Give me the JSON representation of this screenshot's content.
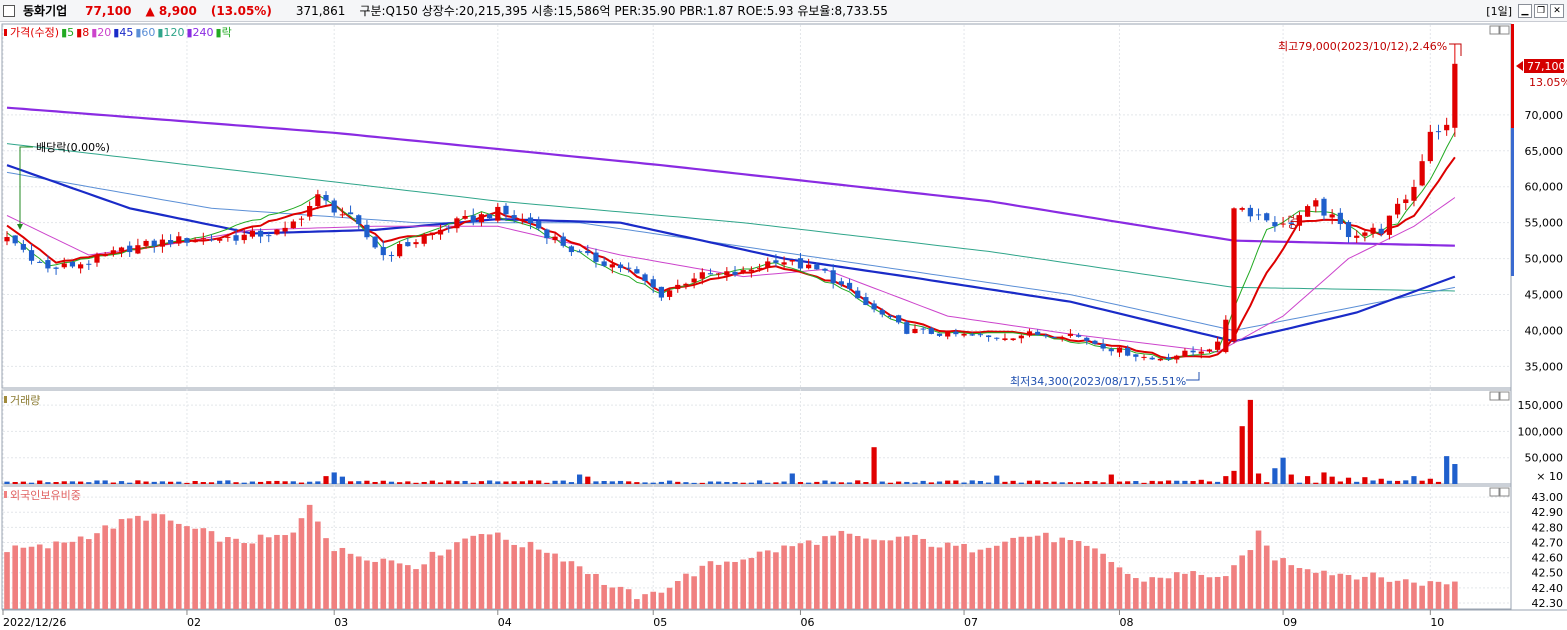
{
  "header": {
    "stock_name": "동화기업",
    "price": "77,100",
    "change": "▲ 8,900",
    "change_pct": "(13.05%)",
    "volume": "371,861",
    "info": "구분:Q150 상장수:20,215,395 시총:15,586억 PER:35.90 PBR:1.87 ROE:5.93 유보율:8,733.55",
    "period": "[1일]"
  },
  "colors": {
    "up": "#e00000",
    "down": "#1f5fcc",
    "ma5": "#22aa22",
    "ma8": "#dd0000",
    "ma20": "#cc44cc",
    "ma45": "#1a2bc8",
    "ma60": "#5b8fd6",
    "ma120": "#2fa58a",
    "ma240": "#8a2be2",
    "foreign": "#f08080"
  },
  "chart_data": [
    {
      "type": "candlestick",
      "title": "가격(수정)",
      "legend": [
        {
          "label": "가격(수정)",
          "color": "#e00000"
        },
        {
          "label": "5",
          "color": "#22aa22"
        },
        {
          "label": "8",
          "color": "#dd0000"
        },
        {
          "label": "20",
          "color": "#cc44cc"
        },
        {
          "label": "45",
          "color": "#1a2bc8"
        },
        {
          "label": "60",
          "color": "#5b8fd6"
        },
        {
          "label": "120",
          "color": "#2fa58a"
        },
        {
          "label": "240",
          "color": "#8a2be2"
        },
        {
          "label": "락",
          "color": "#22aa22"
        }
      ],
      "x_labels": [
        "2022/12/26",
        "02",
        "03",
        "04",
        "05",
        "06",
        "07",
        "08",
        "09",
        "10"
      ],
      "y_ticks": [
        "35,000",
        "40,000",
        "45,000",
        "50,000",
        "55,000",
        "60,000",
        "65,000",
        "70,000"
      ],
      "ylim": [
        32000,
        82500
      ],
      "close_keys": [
        [
          0,
          53000
        ],
        [
          5,
          48500
        ],
        [
          10,
          49500
        ],
        [
          15,
          51500
        ],
        [
          20,
          52500
        ],
        [
          28,
          53000
        ],
        [
          34,
          53800
        ],
        [
          38,
          58500
        ],
        [
          42,
          55500
        ],
        [
          46,
          50500
        ],
        [
          50,
          52500
        ],
        [
          55,
          55000
        ],
        [
          60,
          56500
        ],
        [
          64,
          55000
        ],
        [
          70,
          50500
        ],
        [
          76,
          48500
        ],
        [
          80,
          45000
        ],
        [
          84,
          47500
        ],
        [
          90,
          48000
        ],
        [
          94,
          50000
        ],
        [
          100,
          48000
        ],
        [
          105,
          43500
        ],
        [
          110,
          40000
        ],
        [
          115,
          39500
        ],
        [
          120,
          39000
        ],
        [
          125,
          39500
        ],
        [
          130,
          39500
        ],
        [
          135,
          37500
        ],
        [
          140,
          36000
        ],
        [
          145,
          37000
        ],
        [
          148,
          38000
        ],
        [
          150,
          57500
        ],
        [
          156,
          54500
        ],
        [
          160,
          57500
        ],
        [
          164,
          53500
        ],
        [
          168,
          54000
        ],
        [
          172,
          60000
        ],
        [
          174,
          68000
        ],
        [
          176,
          68200
        ],
        [
          177,
          77100
        ]
      ],
      "moving_averages": [
        {
          "name": "240",
          "color": "#8a2be2",
          "keys": [
            [
              0,
              71000
            ],
            [
              40,
              67500
            ],
            [
              80,
              63000
            ],
            [
              120,
              58000
            ],
            [
              150,
              52500
            ],
            [
              177,
              51800
            ]
          ]
        },
        {
          "name": "120",
          "color": "#2fa58a",
          "keys": [
            [
              0,
              66000
            ],
            [
              30,
              62000
            ],
            [
              60,
              58000
            ],
            [
              90,
              55000
            ],
            [
              120,
              51000
            ],
            [
              150,
              46000
            ],
            [
              177,
              45500
            ]
          ]
        },
        {
          "name": "60",
          "color": "#5b8fd6",
          "keys": [
            [
              0,
              62000
            ],
            [
              25,
              57000
            ],
            [
              50,
              55000
            ],
            [
              70,
              55000
            ],
            [
              100,
              50000
            ],
            [
              130,
              45000
            ],
            [
              150,
              40000
            ],
            [
              177,
              46000
            ]
          ]
        },
        {
          "name": "45",
          "color": "#1a2bc8",
          "keys": [
            [
              0,
              63000
            ],
            [
              15,
              57000
            ],
            [
              30,
              53500
            ],
            [
              45,
              54000
            ],
            [
              60,
              55500
            ],
            [
              75,
              55000
            ],
            [
              95,
              50000
            ],
            [
              110,
              47500
            ],
            [
              130,
              44000
            ],
            [
              150,
              38500
            ],
            [
              165,
              42500
            ],
            [
              177,
              47500
            ]
          ]
        },
        {
          "name": "20",
          "color": "#cc44cc",
          "keys": [
            [
              0,
              56000
            ],
            [
              10,
              50500
            ],
            [
              20,
              52000
            ],
            [
              30,
              54000
            ],
            [
              45,
              54500
            ],
            [
              60,
              54500
            ],
            [
              75,
              50500
            ],
            [
              90,
              47500
            ],
            [
              100,
              48500
            ],
            [
              115,
              42000
            ],
            [
              130,
              39500
            ],
            [
              148,
              37000
            ],
            [
              156,
              42000
            ],
            [
              164,
              50000
            ],
            [
              172,
              54500
            ],
            [
              177,
              58500
            ]
          ]
        },
        {
          "name": "8",
          "color": "#dd0000",
          "keys": [
            [
              0,
              54500
            ],
            [
              6,
              49500
            ],
            [
              14,
              51000
            ],
            [
              26,
              53000
            ],
            [
              36,
              56500
            ],
            [
              40,
              57500
            ],
            [
              46,
              52500
            ],
            [
              52,
              53500
            ],
            [
              60,
              56500
            ],
            [
              66,
              54000
            ],
            [
              75,
              49000
            ],
            [
              80,
              45500
            ],
            [
              86,
              47000
            ],
            [
              94,
              49000
            ],
            [
              102,
              46500
            ],
            [
              108,
              42000
            ],
            [
              115,
              39800
            ],
            [
              125,
              39600
            ],
            [
              135,
              38000
            ],
            [
              142,
              36200
            ],
            [
              148,
              36500
            ],
            [
              150,
              39000
            ],
            [
              154,
              48000
            ],
            [
              158,
              55000
            ],
            [
              162,
              55500
            ],
            [
              168,
              53500
            ],
            [
              172,
              56000
            ],
            [
              177,
              64000
            ]
          ]
        },
        {
          "name": "5",
          "color": "#22aa22",
          "keys": [
            [
              0,
              53500
            ],
            [
              5,
              49000
            ],
            [
              12,
              50500
            ],
            [
              22,
              52500
            ],
            [
              35,
              57000
            ],
            [
              38,
              58800
            ],
            [
              42,
              56000
            ],
            [
              46,
              51500
            ],
            [
              52,
              54000
            ],
            [
              58,
              56500
            ],
            [
              64,
              54500
            ],
            [
              72,
              49500
            ],
            [
              80,
              45200
            ],
            [
              86,
              47500
            ],
            [
              94,
              49500
            ],
            [
              102,
              46000
            ],
            [
              108,
              41500
            ],
            [
              115,
              39600
            ],
            [
              125,
              39500
            ],
            [
              135,
              37600
            ],
            [
              142,
              36000
            ],
            [
              148,
              37000
            ],
            [
              150,
              43000
            ],
            [
              154,
              54000
            ],
            [
              158,
              56500
            ],
            [
              162,
              56500
            ],
            [
              166,
              53000
            ],
            [
              170,
              55000
            ],
            [
              174,
              61000
            ],
            [
              177,
              67500
            ]
          ]
        }
      ],
      "annotations": {
        "high": "최고79,000(2023/10/12),2.46%",
        "low": "최저34,300(2023/08/17),55.51%",
        "dividend": "배당락(0.00%)",
        "price_label": "77,100",
        "pct_label": "13.05%",
        "event_mark": "권0"
      }
    },
    {
      "type": "bar",
      "title": "거래량",
      "y_ticks": [
        "50,000",
        "100,000",
        "150,000"
      ],
      "unit": "× 10",
      "ylim": [
        0,
        175000
      ],
      "baseline": 3500,
      "spikes": [
        [
          40,
          22000
        ],
        [
          39,
          15000
        ],
        [
          41,
          14000
        ],
        [
          70,
          18000
        ],
        [
          71,
          14000
        ],
        [
          96,
          20000
        ],
        [
          106,
          70000
        ],
        [
          121,
          16000
        ],
        [
          135,
          18000
        ],
        [
          146,
          8000
        ],
        [
          149,
          15000
        ],
        [
          150,
          25000
        ],
        [
          151,
          110000
        ],
        [
          152,
          160000
        ],
        [
          153,
          20000
        ],
        [
          155,
          30000
        ],
        [
          156,
          50000
        ],
        [
          157,
          18000
        ],
        [
          159,
          15000
        ],
        [
          161,
          22000
        ],
        [
          162,
          14000
        ],
        [
          164,
          12000
        ],
        [
          166,
          13000
        ],
        [
          168,
          10000
        ],
        [
          172,
          15000
        ],
        [
          174,
          10000
        ],
        [
          176,
          53000
        ],
        [
          177,
          38000
        ]
      ]
    },
    {
      "type": "bar",
      "title": "외국인보유비중",
      "y_ticks": [
        "42.30",
        "42.40",
        "42.50",
        "42.60",
        "42.70",
        "42.80",
        "42.90",
        "43.00"
      ],
      "ylim": [
        42.26,
        43.06
      ],
      "keys": [
        [
          0,
          42.65
        ],
        [
          5,
          42.67
        ],
        [
          10,
          42.75
        ],
        [
          15,
          42.85
        ],
        [
          18,
          42.88
        ],
        [
          22,
          42.8
        ],
        [
          28,
          42.7
        ],
        [
          35,
          42.75
        ],
        [
          37,
          42.96
        ],
        [
          40,
          42.65
        ],
        [
          45,
          42.6
        ],
        [
          50,
          42.55
        ],
        [
          55,
          42.7
        ],
        [
          58,
          42.78
        ],
        [
          62,
          42.7
        ],
        [
          66,
          42.65
        ],
        [
          70,
          42.55
        ],
        [
          74,
          42.4
        ],
        [
          78,
          42.33
        ],
        [
          82,
          42.45
        ],
        [
          86,
          42.55
        ],
        [
          90,
          42.6
        ],
        [
          94,
          42.65
        ],
        [
          98,
          42.7
        ],
        [
          102,
          42.75
        ],
        [
          106,
          42.7
        ],
        [
          110,
          42.74
        ],
        [
          114,
          42.68
        ],
        [
          118,
          42.66
        ],
        [
          122,
          42.72
        ],
        [
          126,
          42.75
        ],
        [
          130,
          42.7
        ],
        [
          134,
          42.62
        ],
        [
          138,
          42.45
        ],
        [
          142,
          42.48
        ],
        [
          146,
          42.5
        ],
        [
          149,
          42.45
        ],
        [
          151,
          42.6
        ],
        [
          153,
          42.75
        ],
        [
          155,
          42.6
        ],
        [
          158,
          42.55
        ],
        [
          162,
          42.5
        ],
        [
          166,
          42.48
        ],
        [
          170,
          42.45
        ],
        [
          174,
          42.43
        ],
        [
          177,
          42.44
        ]
      ]
    }
  ]
}
